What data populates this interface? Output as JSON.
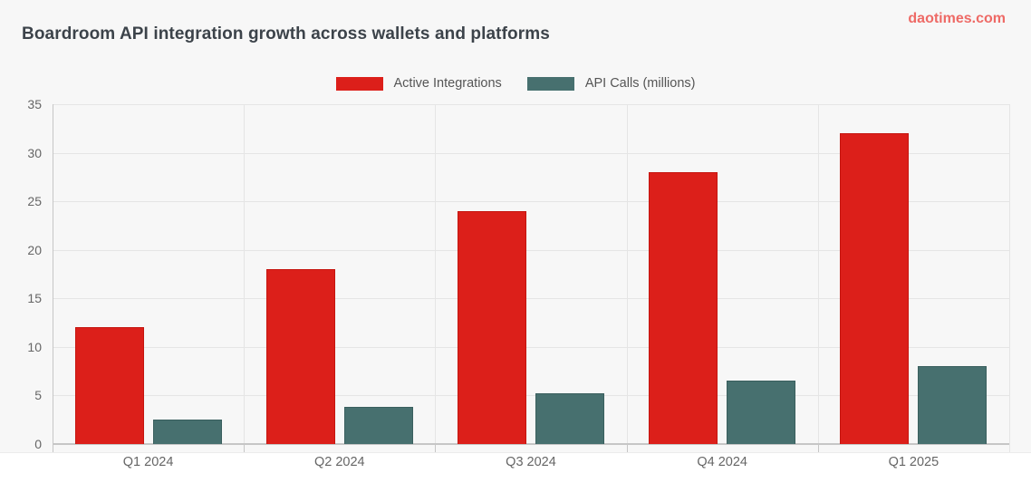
{
  "header": {
    "title": "Boardroom API integration growth across wallets and platforms",
    "watermark": "daotimes.com"
  },
  "chart_data": {
    "type": "bar",
    "title": "Boardroom API integration growth across wallets and platforms",
    "categories": [
      "Q1 2024",
      "Q2 2024",
      "Q3 2024",
      "Q4 2024",
      "Q1 2025"
    ],
    "series": [
      {
        "name": "Active Integrations",
        "color": "#dc1f1a",
        "border_color": "#c5150f",
        "values": [
          12,
          18,
          24,
          28,
          32
        ]
      },
      {
        "name": "API Calls (millions)",
        "color": "#47706f",
        "border_color": "#3a5f5e",
        "values": [
          2.5,
          3.8,
          5.2,
          6.5,
          8
        ]
      }
    ],
    "xlabel": "",
    "ylabel": "",
    "ylim": [
      0,
      35
    ],
    "yticks": [
      0,
      5,
      10,
      15,
      20,
      25,
      30,
      35
    ],
    "grid": true,
    "legend_position": "top-center",
    "colors": {
      "paper_background": "#f7f7f7",
      "grid": "#e5e5e5",
      "axis": "#c6c6c6",
      "tick_text": "#666666",
      "title_text": "#3c434a",
      "watermark_text": "#ee6a66",
      "legend_text": "#555555"
    }
  }
}
